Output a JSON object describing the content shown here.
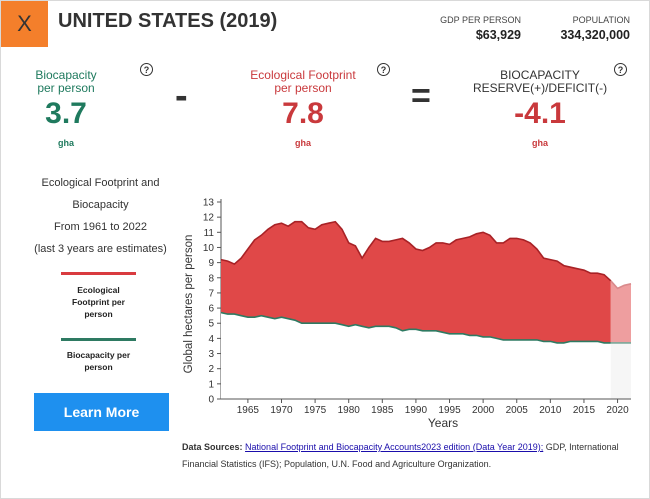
{
  "header": {
    "close_label": "X",
    "country_title": "UNITED STATES (2019)",
    "gdp_label": "GDP PER PERSON",
    "gdp_value": "$63,929",
    "population_label": "POPULATION",
    "population_value": "334,320,000"
  },
  "metrics": {
    "biocapacity": {
      "label_line1": "Biocapacity",
      "label_line2": "per person",
      "value": "3.7",
      "unit": "gha",
      "color": "#1f7a5e"
    },
    "footprint": {
      "label_line1": "Ecological Footprint",
      "label_line2": "per person",
      "value": "7.8",
      "unit": "gha",
      "color": "#c9393c"
    },
    "reserve": {
      "label_line1": "BIOCAPACITY",
      "label_line2": "RESERVE(+)/DEFICIT(-)",
      "value": "-4.1",
      "unit": "gha",
      "color": "#c9393c"
    },
    "minus_symbol": "-",
    "equals_symbol": "=",
    "help_symbol": "?"
  },
  "sidebar": {
    "line1": "Ecological Footprint and",
    "line2": "Biocapacity",
    "line3": "From 1961 to 2022",
    "line4": "(last 3 years are estimates)",
    "legend_footprint_line1": "Ecological",
    "legend_footprint_line2": "Footprint per",
    "legend_footprint_line3": "person",
    "legend_biocapacity_line1": "Biocapacity per",
    "legend_biocapacity_line2": "person",
    "learn_more": "Learn More"
  },
  "chart_data": {
    "type": "area",
    "xlabel": "Years",
    "ylabel": "Global hectares per person",
    "xlim": [
      1961,
      2022
    ],
    "ylim": [
      0,
      13
    ],
    "estimate_start": 2019,
    "x_ticks": [
      1965,
      1970,
      1975,
      1980,
      1985,
      1990,
      1995,
      2000,
      2005,
      2010,
      2015,
      2020
    ],
    "y_ticks": [
      0,
      1,
      2,
      3,
      4,
      5,
      6,
      7,
      8,
      9,
      10,
      11,
      12,
      13
    ],
    "colors": {
      "footprint": "#d93b3f",
      "footprint_estimate": "#ee9e9f",
      "biocapacity": "#2e7a62",
      "gap": "#e04848"
    },
    "series": [
      {
        "name": "Ecological Footprint per person",
        "x": [
          1961,
          1962,
          1963,
          1964,
          1965,
          1966,
          1967,
          1968,
          1969,
          1970,
          1971,
          1972,
          1973,
          1974,
          1975,
          1976,
          1977,
          1978,
          1979,
          1980,
          1981,
          1982,
          1983,
          1984,
          1985,
          1986,
          1987,
          1988,
          1989,
          1990,
          1991,
          1992,
          1993,
          1994,
          1995,
          1996,
          1997,
          1998,
          1999,
          2000,
          2001,
          2002,
          2003,
          2004,
          2005,
          2006,
          2007,
          2008,
          2009,
          2010,
          2011,
          2012,
          2013,
          2014,
          2015,
          2016,
          2017,
          2018,
          2019,
          2020,
          2021,
          2022
        ],
        "values": [
          9.2,
          9.1,
          8.9,
          9.3,
          9.9,
          10.5,
          10.8,
          11.2,
          11.5,
          11.6,
          11.4,
          11.7,
          11.7,
          11.3,
          11.2,
          11.5,
          11.6,
          11.7,
          11.2,
          10.3,
          10.1,
          9.3,
          10.0,
          10.6,
          10.4,
          10.4,
          10.5,
          10.6,
          10.3,
          9.9,
          9.8,
          10.0,
          10.3,
          10.3,
          10.2,
          10.5,
          10.6,
          10.7,
          10.9,
          11.0,
          10.8,
          10.3,
          10.3,
          10.6,
          10.6,
          10.5,
          10.3,
          9.9,
          9.3,
          9.2,
          9.1,
          8.8,
          8.7,
          8.6,
          8.5,
          8.3,
          8.3,
          8.2,
          7.8,
          7.3,
          7.5,
          7.6
        ]
      },
      {
        "name": "Biocapacity per person",
        "x": [
          1961,
          1962,
          1963,
          1964,
          1965,
          1966,
          1967,
          1968,
          1969,
          1970,
          1971,
          1972,
          1973,
          1974,
          1975,
          1976,
          1977,
          1978,
          1979,
          1980,
          1981,
          1982,
          1983,
          1984,
          1985,
          1986,
          1987,
          1988,
          1989,
          1990,
          1991,
          1992,
          1993,
          1994,
          1995,
          1996,
          1997,
          1998,
          1999,
          2000,
          2001,
          2002,
          2003,
          2004,
          2005,
          2006,
          2007,
          2008,
          2009,
          2010,
          2011,
          2012,
          2013,
          2014,
          2015,
          2016,
          2017,
          2018,
          2019,
          2020,
          2021,
          2022
        ],
        "values": [
          5.7,
          5.6,
          5.6,
          5.5,
          5.4,
          5.4,
          5.5,
          5.4,
          5.3,
          5.4,
          5.3,
          5.2,
          5.0,
          5.0,
          5.0,
          5.0,
          5.0,
          5.0,
          4.9,
          4.8,
          4.9,
          4.8,
          4.7,
          4.8,
          4.8,
          4.8,
          4.7,
          4.5,
          4.6,
          4.6,
          4.5,
          4.5,
          4.5,
          4.4,
          4.3,
          4.3,
          4.3,
          4.2,
          4.2,
          4.1,
          4.1,
          4.0,
          3.9,
          3.9,
          3.9,
          3.9,
          3.9,
          3.9,
          3.8,
          3.8,
          3.7,
          3.7,
          3.8,
          3.8,
          3.8,
          3.8,
          3.8,
          3.7,
          3.7,
          3.7,
          3.7,
          3.7
        ]
      }
    ]
  },
  "sources": {
    "prefix": "Data Sources:",
    "link_text": "National Footprint and Biocapacity Accounts2023 edition (Data Year 2019);",
    "suffix": " GDP, International Financial Statistics (IFS); Population, U.N. Food and Agriculture Organization."
  }
}
